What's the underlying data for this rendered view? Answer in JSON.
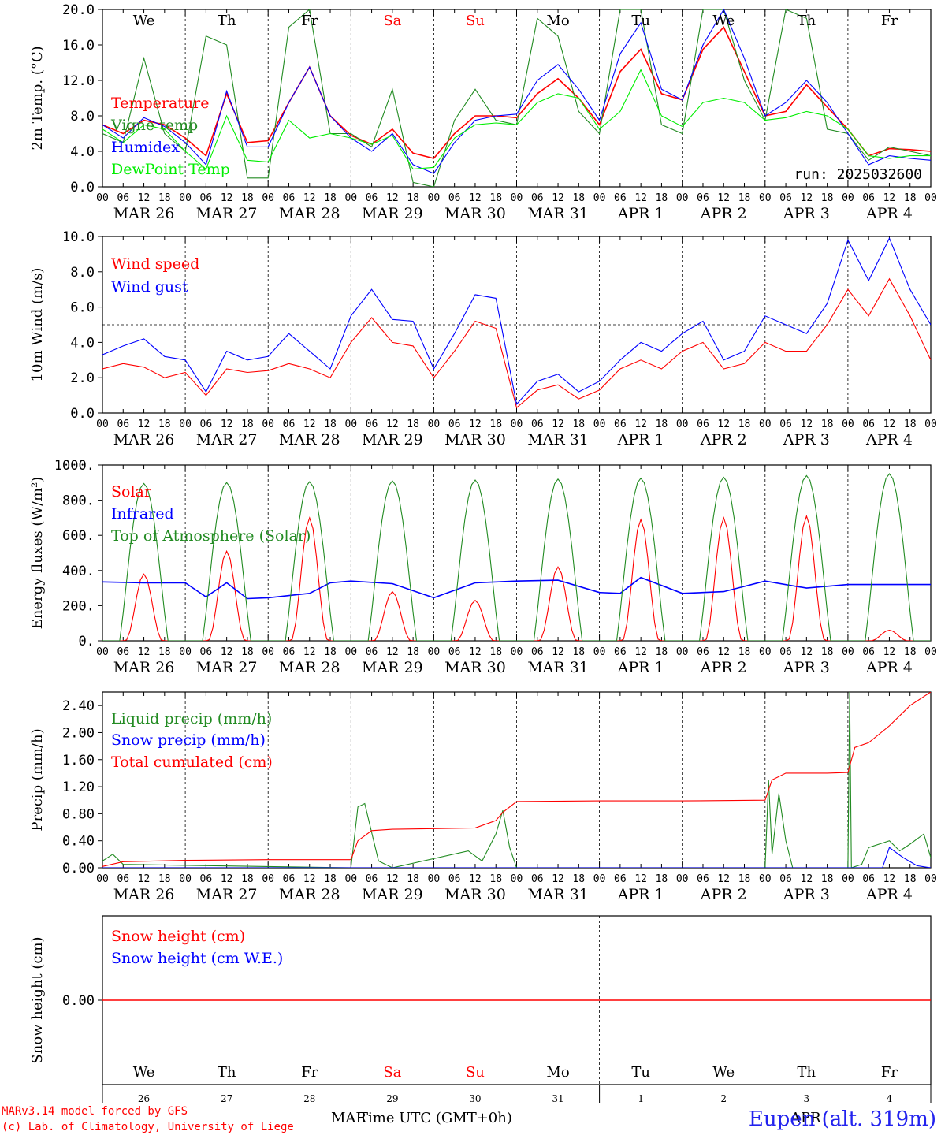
{
  "days": [
    "MAR 26",
    "MAR 27",
    "MAR 28",
    "MAR 29",
    "MAR 30",
    "MAR 31",
    "APR  1",
    "APR  2",
    "APR  3",
    "APR  4"
  ],
  "weekdays": [
    "We",
    "Th",
    "Fr",
    "Sa",
    "Su",
    "Mo",
    "Tu",
    "We",
    "Th",
    "Fr"
  ],
  "weekday_colors": [
    "#000000",
    "#000000",
    "#000000",
    "#ff0000",
    "#ff0000",
    "#000000",
    "#000000",
    "#000000",
    "#000000",
    "#000000"
  ],
  "hour_ticks": [
    "00",
    "06",
    "12",
    "18"
  ],
  "last_tick": "00",
  "run_label": "run: 2025032600",
  "bottom": {
    "day_numbers": [
      "26",
      "27",
      "28",
      "29",
      "30",
      "31",
      "1",
      "2",
      "3",
      "4"
    ],
    "month_left": "MAR",
    "month_right": "APR",
    "time_label": "Time UTC (GMT+0h)",
    "credit_line1": "MARv3.14 model forced by GFS",
    "credit_line2": "(c) Lab. of Climatology, University of Liege",
    "station": "Eupen (alt. 319m)"
  },
  "chart_data": [
    {
      "type": "line",
      "ylabel": "2m Temp. (°C)",
      "ylim": [
        0,
        20
      ],
      "yticks": [
        "0.0",
        "4.0",
        "8.0",
        "12.0",
        "16.0",
        "20.0"
      ],
      "x_unit": "hours since MAR 26 00 UTC",
      "series": [
        {
          "name": "Temperature",
          "color": "#ff0000",
          "x": [
            0,
            6,
            12,
            18,
            24,
            30,
            36,
            42,
            48,
            54,
            60,
            66,
            72,
            78,
            84,
            90,
            96,
            102,
            108,
            114,
            120,
            126,
            132,
            138,
            144,
            150,
            156,
            162,
            168,
            174,
            180,
            186,
            192,
            198,
            204,
            210,
            216,
            222,
            228,
            234,
            240
          ],
          "values": [
            7.0,
            6.0,
            7.5,
            7.0,
            5.5,
            3.5,
            10.5,
            5.0,
            5.2,
            9.5,
            13.5,
            8.0,
            5.8,
            4.8,
            6.5,
            3.8,
            3.2,
            6.0,
            8.0,
            8.0,
            7.8,
            10.5,
            12.2,
            10.0,
            7.0,
            13.0,
            15.5,
            10.5,
            9.8,
            15.5,
            18.0,
            13.0,
            8.0,
            8.5,
            11.5,
            9.0,
            6.5,
            3.5,
            4.3,
            4.2,
            4.0
          ]
        },
        {
          "name": "Vigne temp",
          "color": "#228b22",
          "x": [
            0,
            6,
            12,
            18,
            24,
            30,
            36,
            42,
            48,
            54,
            60,
            66,
            72,
            78,
            84,
            90,
            96,
            102,
            108,
            114,
            120,
            126,
            132,
            138,
            144,
            150,
            156,
            162,
            168,
            174,
            180,
            186,
            192,
            198,
            204,
            210,
            216,
            222,
            228,
            234,
            240
          ],
          "values": [
            6.0,
            5.0,
            14.5,
            6.0,
            4.0,
            17.0,
            16.0,
            1.0,
            1.0,
            18.0,
            20.0,
            6.0,
            6.0,
            4.5,
            11.0,
            0.5,
            0.0,
            7.5,
            11.0,
            7.5,
            7.0,
            19.0,
            17.0,
            8.5,
            6.0,
            20.0,
            20.0,
            7.0,
            6.0,
            20.0,
            20.0,
            12.0,
            7.5,
            20.0,
            19.0,
            6.5,
            6.0,
            3.0,
            4.5,
            4.0,
            3.5
          ]
        },
        {
          "name": "Humidex",
          "color": "#0000ff",
          "x": [
            0,
            6,
            12,
            18,
            24,
            30,
            36,
            42,
            48,
            54,
            60,
            66,
            72,
            78,
            84,
            90,
            96,
            102,
            108,
            114,
            120,
            126,
            132,
            138,
            144,
            150,
            156,
            162,
            168,
            174,
            180,
            186,
            192,
            198,
            204,
            210,
            216,
            222,
            228,
            234,
            240
          ],
          "values": [
            7.0,
            5.5,
            7.8,
            6.8,
            5.0,
            2.5,
            10.8,
            4.5,
            4.5,
            9.5,
            13.5,
            8.0,
            5.5,
            4.0,
            6.0,
            2.5,
            1.5,
            5.0,
            7.5,
            8.0,
            8.2,
            12.0,
            13.8,
            11.0,
            7.5,
            15.0,
            18.5,
            11.0,
            9.8,
            16.0,
            20.0,
            14.5,
            8.0,
            9.5,
            12.0,
            9.5,
            6.0,
            2.5,
            3.5,
            3.2,
            3.0
          ]
        },
        {
          "name": "DewPoint Temp",
          "color": "#00ee00",
          "x": [
            0,
            6,
            12,
            18,
            24,
            30,
            36,
            42,
            48,
            54,
            60,
            66,
            72,
            78,
            84,
            90,
            96,
            102,
            108,
            114,
            120,
            126,
            132,
            138,
            144,
            150,
            156,
            162,
            168,
            174,
            180,
            186,
            192,
            198,
            204,
            210,
            216,
            222,
            228,
            234,
            240
          ],
          "values": [
            6.5,
            5.0,
            7.0,
            6.5,
            4.0,
            2.0,
            8.0,
            3.0,
            2.8,
            7.5,
            5.5,
            6.0,
            5.5,
            4.8,
            5.8,
            2.0,
            2.2,
            5.5,
            7.0,
            7.2,
            7.0,
            9.5,
            10.5,
            10.0,
            6.5,
            8.5,
            13.2,
            8.0,
            6.8,
            9.5,
            10.0,
            9.5,
            7.5,
            7.8,
            8.5,
            8.0,
            6.5,
            3.5,
            3.2,
            3.5,
            3.5
          ]
        }
      ]
    },
    {
      "type": "line",
      "ylabel": "10m Wind (m/s)",
      "ylim": [
        0,
        10
      ],
      "yticks": [
        "0.0",
        "2.0",
        "4.0",
        "6.0",
        "8.0",
        "10.0"
      ],
      "reference_line": 5.0,
      "series": [
        {
          "name": "Wind speed",
          "color": "#ff0000",
          "x": [
            0,
            6,
            12,
            18,
            24,
            30,
            36,
            42,
            48,
            54,
            60,
            66,
            72,
            78,
            84,
            90,
            96,
            102,
            108,
            114,
            120,
            126,
            132,
            138,
            144,
            150,
            156,
            162,
            168,
            174,
            180,
            186,
            192,
            198,
            204,
            210,
            216,
            222,
            228,
            234,
            240
          ],
          "values": [
            2.5,
            2.8,
            2.6,
            2.0,
            2.3,
            1.0,
            2.5,
            2.3,
            2.4,
            2.8,
            2.5,
            2.0,
            4.0,
            5.4,
            4.0,
            3.8,
            2.0,
            3.5,
            5.2,
            4.8,
            0.3,
            1.3,
            1.6,
            0.8,
            1.3,
            2.5,
            3.0,
            2.5,
            3.5,
            4.0,
            2.5,
            2.8,
            4.0,
            3.5,
            3.5,
            5.0,
            7.0,
            5.5,
            7.6,
            5.5,
            3.0
          ]
        },
        {
          "name": "Wind gust",
          "color": "#0000ff",
          "x": [
            0,
            6,
            12,
            18,
            24,
            30,
            36,
            42,
            48,
            54,
            60,
            66,
            72,
            78,
            84,
            90,
            96,
            102,
            108,
            114,
            120,
            126,
            132,
            138,
            144,
            150,
            156,
            162,
            168,
            174,
            180,
            186,
            192,
            198,
            204,
            210,
            216,
            222,
            228,
            234,
            240
          ],
          "values": [
            3.3,
            3.8,
            4.2,
            3.2,
            3.0,
            1.2,
            3.5,
            3.0,
            3.2,
            4.5,
            3.5,
            2.5,
            5.5,
            7.0,
            5.3,
            5.2,
            2.5,
            4.5,
            6.7,
            6.5,
            0.5,
            1.8,
            2.2,
            1.2,
            1.8,
            3.0,
            4.0,
            3.5,
            4.5,
            5.2,
            3.0,
            3.5,
            5.5,
            5.0,
            4.5,
            6.2,
            9.8,
            7.5,
            9.9,
            7.0,
            5.0
          ]
        }
      ]
    },
    {
      "type": "line",
      "ylabel": "Energy fluxes (W/m²)",
      "ylim": [
        0,
        1000
      ],
      "yticks": [
        "0.",
        "200.",
        "400.",
        "600.",
        "800.",
        "1000."
      ],
      "series": [
        {
          "name": "Solar",
          "color": "#ff0000",
          "peaks": [
            380,
            510,
            700,
            280,
            230,
            420,
            690,
            700,
            710,
            60
          ],
          "x": [],
          "values": []
        },
        {
          "name": "Infrared",
          "color": "#0000ff",
          "x": [
            0,
            12,
            24,
            30,
            36,
            42,
            48,
            60,
            66,
            72,
            84,
            96,
            108,
            120,
            132,
            144,
            150,
            156,
            168,
            180,
            192,
            204,
            216,
            228,
            240
          ],
          "values": [
            335,
            330,
            330,
            250,
            330,
            240,
            245,
            270,
            330,
            340,
            325,
            245,
            330,
            340,
            345,
            275,
            270,
            360,
            270,
            280,
            340,
            300,
            320,
            320,
            320
          ]
        },
        {
          "name": "Top of Atmosphere (Solar)",
          "color": "#228b22",
          "peaks": [
            895,
            900,
            905,
            910,
            915,
            920,
            925,
            930,
            940,
            950
          ],
          "x": [],
          "values": []
        }
      ]
    },
    {
      "type": "line",
      "ylabel": "Precip (mm/h)",
      "ylim": [
        0,
        2.6
      ],
      "yticks": [
        "0.00",
        "0.40",
        "0.80",
        "1.20",
        "1.60",
        "2.00",
        "2.40"
      ],
      "series": [
        {
          "name": "Liquid precip (mm/h)",
          "color": "#228b22",
          "x": [
            0,
            3,
            6,
            72,
            74,
            76,
            80,
            84,
            106,
            110,
            114,
            116,
            118,
            120,
            192,
            193,
            194,
            196,
            198,
            200,
            216,
            216.5,
            217,
            220,
            222,
            228,
            231,
            234,
            238,
            240
          ],
          "values": [
            0.1,
            0.2,
            0.05,
            0,
            0.9,
            0.95,
            0.1,
            0,
            0.25,
            0.1,
            0.5,
            0.85,
            0.3,
            0,
            0,
            1.3,
            0.2,
            1.1,
            0.4,
            0,
            0,
            2.6,
            0,
            0.05,
            0.3,
            0.4,
            0.25,
            0.35,
            0.5,
            0.15
          ]
        },
        {
          "name": "Snow precip (mm/h)",
          "color": "#0000ff",
          "x": [
            0,
            226,
            228,
            232,
            236,
            240
          ],
          "values": [
            0,
            0,
            0.3,
            0.15,
            0.03,
            0
          ]
        },
        {
          "name": "Total cumulated (cm)",
          "color": "#ff0000",
          "x": [
            0,
            6,
            24,
            48,
            72,
            74,
            78,
            84,
            96,
            108,
            114,
            116,
            120,
            144,
            168,
            192,
            194,
            198,
            210,
            216,
            218,
            222,
            228,
            234,
            240
          ],
          "values": [
            0.02,
            0.09,
            0.11,
            0.12,
            0.12,
            0.4,
            0.55,
            0.57,
            0.58,
            0.59,
            0.7,
            0.82,
            0.98,
            0.99,
            0.99,
            1.0,
            1.3,
            1.4,
            1.4,
            1.41,
            1.78,
            1.85,
            2.1,
            2.4,
            2.6
          ]
        }
      ]
    },
    {
      "type": "line",
      "ylabel": "Snow height (cm)",
      "ylim": [
        -1,
        1
      ],
      "yticks": [
        "0.00"
      ],
      "series": [
        {
          "name": "Snow height (cm)",
          "color": "#ff0000",
          "x": [
            0,
            240
          ],
          "values": [
            0,
            0
          ]
        },
        {
          "name": "Snow height (cm W.E.)",
          "color": "#0000ff",
          "x": [],
          "values": []
        }
      ]
    }
  ]
}
